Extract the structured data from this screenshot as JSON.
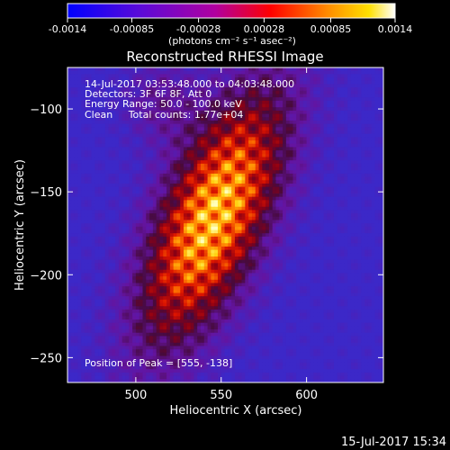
{
  "chart_data": {
    "type": "heatmap",
    "title": "Reconstructed RHESSI Image",
    "xlabel": "Heliocentric X (arcsec)",
    "ylabel": "Heliocentric Y (arcsec)",
    "xlim": [
      460,
      645
    ],
    "ylim": [
      -265,
      -75
    ],
    "x_ticks": [
      500,
      550,
      600
    ],
    "y_ticks": [
      -100,
      -150,
      -200,
      -250
    ],
    "colorbar": {
      "min": -0.0014,
      "max": 0.0014,
      "tick_values": [
        -0.0014,
        -0.00085,
        -0.00028,
        0.00028,
        0.00085,
        0.0014
      ],
      "tick_labels": [
        "-0.0014",
        "-0.00085",
        "-0.00028",
        "0.00028",
        "0.00085",
        "0.0014"
      ],
      "units_label": "(photons cm⁻² s⁻¹ asec⁻²)"
    },
    "peak": [
      555,
      -138
    ],
    "annotations": [
      "14-Jul-2017 03:53:48.000 to 04:03:48.000",
      "Detectors: 3F 6F 8F, Att 0",
      "Energy Range: 50.0 - 100.0 keV",
      "Clean     Total counts: 1.77e+04",
      "Position of Peak = [555, -138]"
    ],
    "footer_timestamp": "15-Jul-2017 15:34"
  }
}
